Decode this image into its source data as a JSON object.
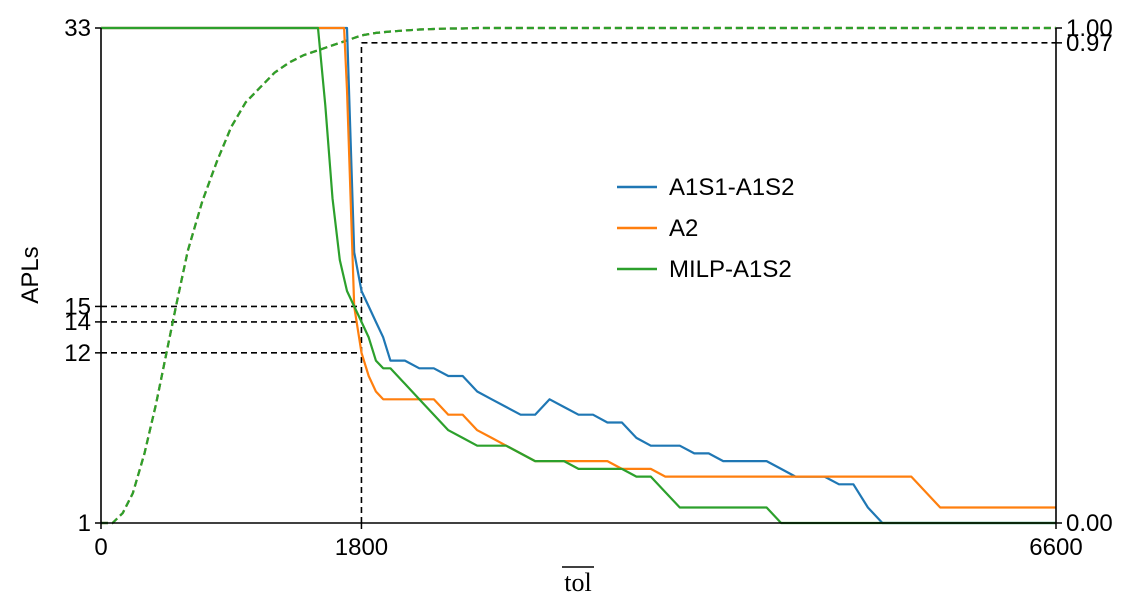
{
  "chart_data": {
    "type": "line",
    "xlabel": "tol",
    "ylabel": "APLs",
    "xlim": [
      0,
      6600
    ],
    "ylim_left": [
      1,
      33
    ],
    "ylim_right": [
      0.0,
      1.0
    ],
    "x_ticks": [
      0,
      1800,
      6600
    ],
    "y_ticks_left": [
      1,
      12,
      14,
      15,
      33
    ],
    "y_ticks_right": [
      "0.00",
      "0.97",
      "1.00"
    ],
    "grid": false,
    "legend_position": "center-right",
    "reference_lines": {
      "x": 1800,
      "left_levels": [
        12,
        14,
        15
      ],
      "right_level": 0.97
    },
    "series": [
      {
        "name": "A1S1-A1S2",
        "color": "#1f77b4",
        "axis": "left",
        "style": "solid",
        "x": [
          0,
          1600,
          1640,
          1680,
          1700,
          1750,
          1800,
          1850,
          1900,
          1950,
          2000,
          2100,
          2200,
          2300,
          2400,
          2500,
          2600,
          2700,
          2800,
          2900,
          3000,
          3100,
          3200,
          3300,
          3400,
          3500,
          3600,
          3700,
          3800,
          3900,
          4000,
          4100,
          4200,
          4300,
          4400,
          4500,
          4600,
          4700,
          4800,
          4900,
          5000,
          5100,
          5200,
          5300,
          5400,
          5500,
          5600,
          5700,
          5800,
          5900,
          6000,
          6600
        ],
        "values": [
          33,
          33,
          33,
          33,
          33,
          18.5,
          16,
          15,
          14,
          13,
          11.5,
          11.5,
          11,
          11,
          10.5,
          10.5,
          9.5,
          9,
          8.5,
          8,
          8,
          9,
          8.5,
          8,
          8,
          7.5,
          7.5,
          6.5,
          6,
          6,
          6,
          5.5,
          5.5,
          5,
          5,
          5,
          5,
          4.5,
          4,
          4,
          4,
          3.5,
          3.5,
          2,
          1,
          1,
          1,
          1,
          1,
          1,
          1,
          1
        ]
      },
      {
        "name": "A2",
        "color": "#ff7f0e",
        "axis": "left",
        "style": "solid",
        "x": [
          0,
          1600,
          1650,
          1680,
          1700,
          1750,
          1800,
          1850,
          1900,
          1950,
          2000,
          2100,
          2200,
          2300,
          2400,
          2500,
          2600,
          2700,
          2800,
          2900,
          3000,
          3100,
          3200,
          3300,
          3400,
          3500,
          3600,
          3700,
          3800,
          3900,
          4000,
          4100,
          4200,
          4300,
          4400,
          4500,
          4600,
          4700,
          4800,
          4900,
          5000,
          5100,
          5200,
          5300,
          5400,
          5500,
          5600,
          5700,
          5800,
          5900,
          6000,
          6600
        ],
        "values": [
          33,
          33,
          33,
          33,
          29,
          15,
          12,
          10.5,
          9.5,
          9,
          9,
          9,
          9,
          9,
          8,
          8,
          7,
          6.5,
          6,
          5.5,
          5,
          5,
          5,
          5,
          5,
          5,
          4.5,
          4.5,
          4.5,
          4,
          4,
          4,
          4,
          4,
          4,
          4,
          4,
          4,
          4,
          4,
          4,
          4,
          4,
          4,
          4,
          4,
          4,
          3,
          2,
          2,
          2,
          2
        ]
      },
      {
        "name": "MILP-A1S2",
        "color": "#2ca02c",
        "axis": "left",
        "style": "solid",
        "x": [
          0,
          1450,
          1480,
          1500,
          1550,
          1600,
          1650,
          1700,
          1750,
          1800,
          1850,
          1900,
          1950,
          2000,
          2100,
          2200,
          2300,
          2400,
          2500,
          2600,
          2700,
          2800,
          2900,
          3000,
          3100,
          3200,
          3300,
          3400,
          3500,
          3600,
          3700,
          3800,
          3900,
          4000,
          4100,
          4200,
          4300,
          4400,
          4500,
          4600,
          4700,
          4800,
          4900,
          5000,
          5100,
          5200,
          5300,
          5400,
          5500,
          5600,
          5700,
          6600
        ],
        "values": [
          33,
          33,
          33,
          33,
          28,
          22,
          18,
          16,
          15,
          14,
          13,
          11.5,
          11,
          11,
          10,
          9,
          8,
          7,
          6.5,
          6,
          6,
          6,
          5.5,
          5,
          5,
          5,
          4.5,
          4.5,
          4.5,
          4.5,
          4,
          4,
          3,
          2,
          2,
          2,
          2,
          2,
          2,
          2,
          1,
          1,
          1,
          1,
          1,
          1,
          1,
          1,
          1,
          1,
          1,
          1
        ]
      },
      {
        "name": "A1S1-A1S2",
        "color": "#1f77b4",
        "axis": "right",
        "style": "dashed",
        "x": [
          0,
          80,
          150,
          220,
          300,
          380,
          450,
          520,
          600,
          700,
          800,
          900,
          1000,
          1100,
          1200,
          1300,
          1400,
          1500,
          1600,
          1700,
          1800,
          1900,
          2000,
          2100,
          2200,
          2300,
          2400,
          2500,
          2600,
          2800,
          3000,
          3500,
          4000,
          5000,
          6000,
          6600
        ],
        "values": [
          0,
          0,
          0.02,
          0.06,
          0.14,
          0.24,
          0.34,
          0.44,
          0.55,
          0.65,
          0.73,
          0.8,
          0.85,
          0.88,
          0.91,
          0.93,
          0.945,
          0.955,
          0.965,
          0.975,
          0.985,
          0.99,
          0.993,
          0.995,
          0.997,
          0.998,
          0.999,
          0.999,
          1.0,
          1.0,
          1.0,
          1.0,
          1.0,
          1.0,
          1.0,
          1.0
        ]
      },
      {
        "name": "A2",
        "color": "#ff7f0e",
        "axis": "right",
        "style": "dashed",
        "x": [
          0,
          80,
          150,
          220,
          300,
          380,
          450,
          520,
          600,
          700,
          800,
          900,
          1000,
          1100,
          1200,
          1300,
          1400,
          1500,
          1600,
          1700,
          1800,
          1900,
          2000,
          2100,
          2200,
          2300,
          2400,
          2500,
          2600,
          2800,
          3000,
          3500,
          4000,
          5000,
          6000,
          6600
        ],
        "values": [
          0,
          0,
          0.02,
          0.06,
          0.14,
          0.24,
          0.34,
          0.44,
          0.55,
          0.65,
          0.73,
          0.8,
          0.85,
          0.88,
          0.91,
          0.93,
          0.945,
          0.955,
          0.965,
          0.975,
          0.985,
          0.99,
          0.993,
          0.995,
          0.997,
          0.998,
          0.999,
          0.999,
          1.0,
          1.0,
          1.0,
          1.0,
          1.0,
          1.0,
          1.0,
          1.0
        ]
      },
      {
        "name": "MILP-A1S2",
        "color": "#2ca02c",
        "axis": "right",
        "style": "dashed",
        "x": [
          0,
          80,
          150,
          220,
          300,
          380,
          450,
          520,
          600,
          700,
          800,
          900,
          1000,
          1100,
          1200,
          1300,
          1400,
          1500,
          1600,
          1700,
          1800,
          1900,
          2000,
          2100,
          2200,
          2300,
          2400,
          2500,
          2600,
          2800,
          3000,
          3500,
          4000,
          5000,
          6000,
          6600
        ],
        "values": [
          0,
          0,
          0.02,
          0.06,
          0.14,
          0.24,
          0.34,
          0.44,
          0.55,
          0.65,
          0.73,
          0.8,
          0.85,
          0.88,
          0.91,
          0.93,
          0.945,
          0.955,
          0.965,
          0.975,
          0.985,
          0.99,
          0.993,
          0.995,
          0.997,
          0.998,
          0.999,
          0.999,
          1.0,
          1.0,
          1.0,
          1.0,
          1.0,
          1.0,
          1.0,
          1.0
        ]
      }
    ],
    "legend": [
      {
        "label": "A1S1-A1S2",
        "color": "#1f77b4"
      },
      {
        "label": "A2",
        "color": "#ff7f0e"
      },
      {
        "label": "MILP-A1S2",
        "color": "#2ca02c"
      }
    ]
  }
}
